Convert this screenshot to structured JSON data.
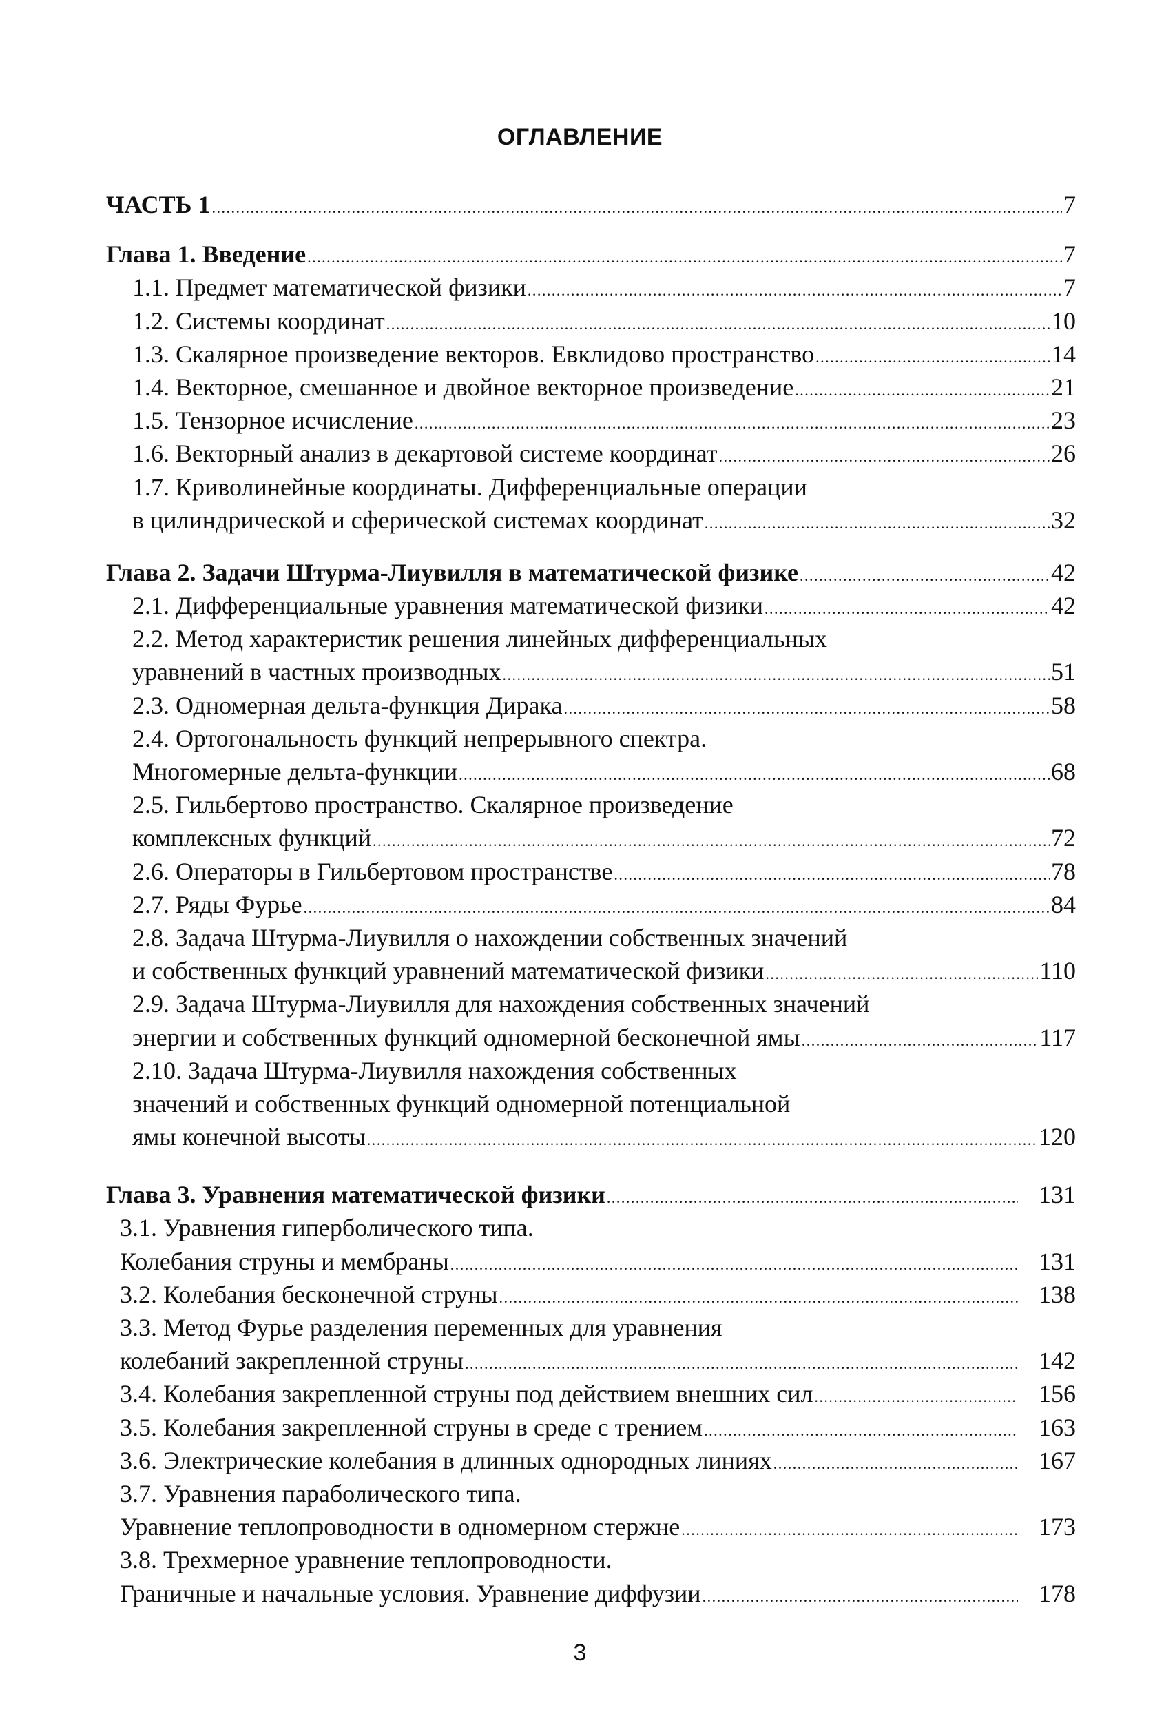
{
  "title": "ОГЛАВЛЕНИЕ",
  "part": {
    "label": "ЧАСТЬ 1",
    "page": "7"
  },
  "chapters": [
    {
      "label": "Глава 1. Введение",
      "page": "7",
      "entries": [
        {
          "lines": [
            "1.1. Предмет математической физики"
          ],
          "page": "7"
        },
        {
          "lines": [
            "1.2. Системы координат"
          ],
          "page": "10"
        },
        {
          "lines": [
            "1.3. Скалярное произведение векторов. Евклидово пространство"
          ],
          "page": "14"
        },
        {
          "lines": [
            "1.4. Векторное, смешанное и двойное векторное произведение"
          ],
          "page": "21"
        },
        {
          "lines": [
            "1.5. Тензорное исчисление"
          ],
          "page": "23"
        },
        {
          "lines": [
            "1.6. Векторный анализ в декартовой системе координат"
          ],
          "page": "26"
        },
        {
          "lines": [
            "1.7. Криволинейные координаты. Дифференциальные операции",
            "в цилиндрической и сферической системах координат"
          ],
          "page": "32"
        }
      ]
    },
    {
      "label": "Глава 2. Задачи Штурма-Лиувилля в математической физике",
      "page": "42",
      "entries": [
        {
          "lines": [
            "2.1. Дифференциальные уравнения математической физики"
          ],
          "page": "42"
        },
        {
          "lines": [
            "2.2. Метод характеристик решения линейных дифференциальных",
            "уравнений в частных производных"
          ],
          "page": "51"
        },
        {
          "lines": [
            "2.3. Одномерная дельта-функция Дирака"
          ],
          "page": "58"
        },
        {
          "lines": [
            "2.4. Ортогональность функций непрерывного спектра.",
            "Многомерные дельта-функции"
          ],
          "page": "68"
        },
        {
          "lines": [
            "2.5. Гильбертово пространство. Скалярное произведение",
            "комплексных функций"
          ],
          "page": "72"
        },
        {
          "lines": [
            "2.6. Операторы в Гильбертовом пространстве"
          ],
          "page": "78"
        },
        {
          "lines": [
            "2.7. Ряды Фурье"
          ],
          "page": "84"
        },
        {
          "lines": [
            "2.8. Задача Штурма-Лиувилля о нахождении собственных значений",
            "и собственных функций уравнений математической физики"
          ],
          "page": "110"
        },
        {
          "lines": [
            "2.9. Задача Штурма-Лиувилля для нахождения собственных значений",
            "энергии и собственных функций одномерной бесконечной ямы"
          ],
          "page": "117"
        },
        {
          "lines": [
            "2.10. Задача Штурма-Лиувилля нахождения собственных",
            "значений и собственных функций одномерной потенциальной",
            "ямы конечной высоты"
          ],
          "page": "120"
        }
      ]
    },
    {
      "label": "Глава 3. Уравнения математической физики",
      "page": "131",
      "entries": [
        {
          "lines": [
            "3.1. Уравнения гиперболического типа.",
            "Колебания струны и мембраны"
          ],
          "page": "131"
        },
        {
          "lines": [
            "3.2. Колебания бесконечной струны"
          ],
          "page": "138"
        },
        {
          "lines": [
            "3.3. Метод Фурье разделения переменных для уравнения",
            "колебаний закрепленной струны"
          ],
          "page": "142"
        },
        {
          "lines": [
            "3.4. Колебания закрепленной струны под действием внешних сил"
          ],
          "page": "156"
        },
        {
          "lines": [
            "3.5. Колебания закрепленной струны в среде с трением"
          ],
          "page": "163"
        },
        {
          "lines": [
            "3.6. Электрические колебания в длинных однородных линиях"
          ],
          "page": "167"
        },
        {
          "lines": [
            "3.7. Уравнения параболического типа.",
            "Уравнение теплопроводности в одномерном стержне"
          ],
          "page": "173"
        },
        {
          "lines": [
            "3.8. Трехмерное уравнение теплопроводности.",
            "Граничные и начальные условия. Уравнение диффузии"
          ],
          "page": "178"
        }
      ]
    }
  ],
  "page_number": "3"
}
